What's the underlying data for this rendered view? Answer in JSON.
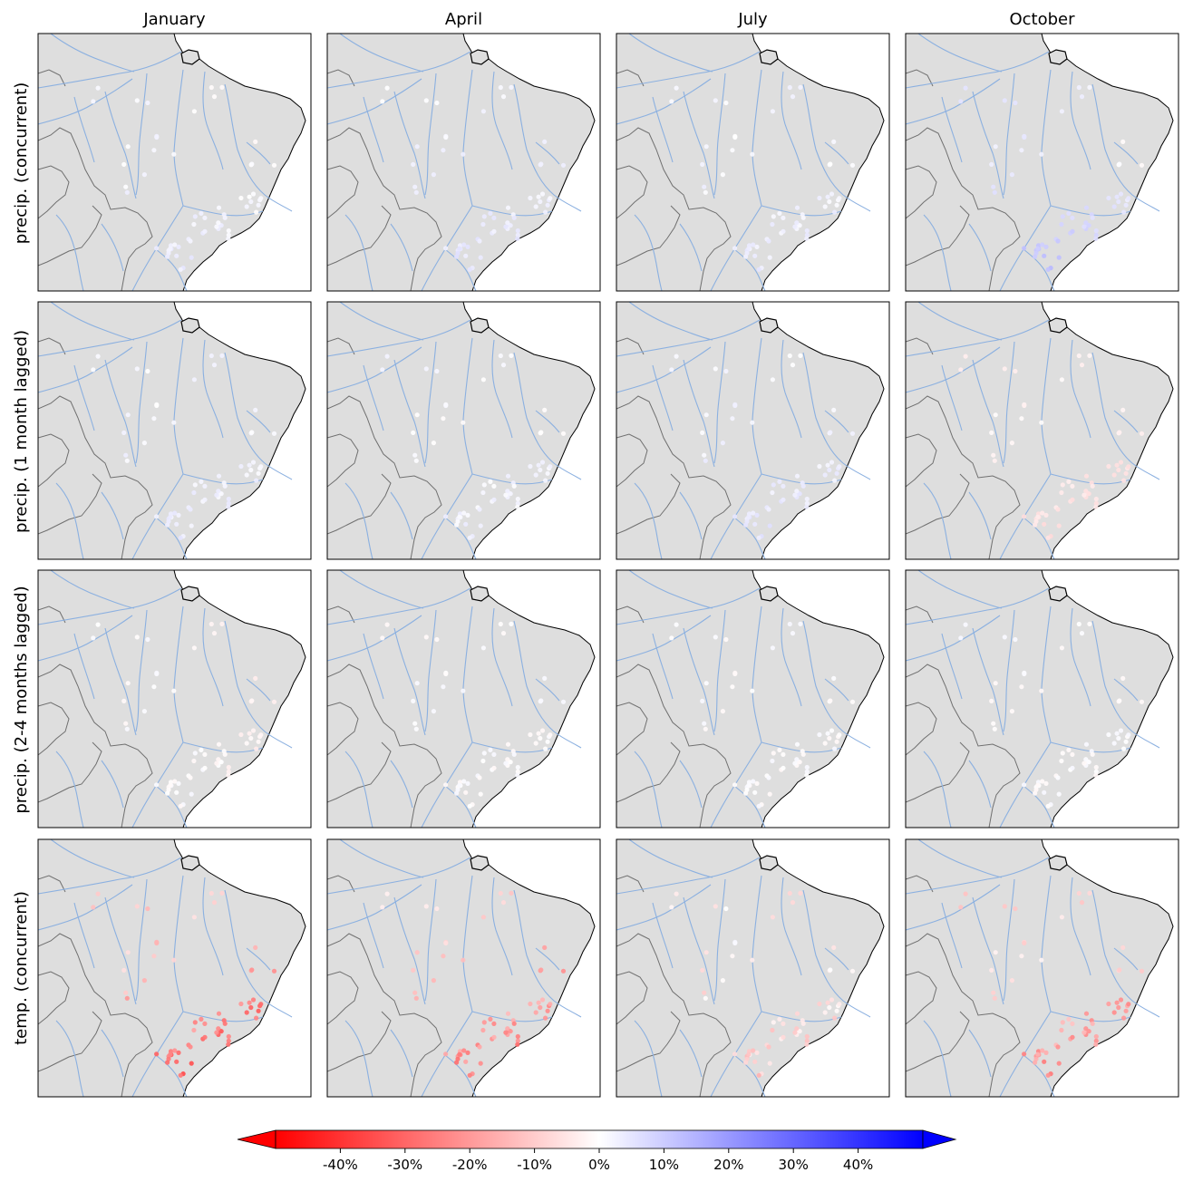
{
  "figure": {
    "columns": [
      "January",
      "April",
      "July",
      "October"
    ],
    "rows": [
      "precip. (concurrent)",
      "precip. (1 month lagged)",
      "precip. (2-4 months lagged)",
      "temp. (concurrent)"
    ]
  },
  "colorbar": {
    "ticks": [
      "-40%",
      "-30%",
      "-20%",
      "-10%",
      "0%",
      "10%",
      "20%",
      "30%",
      "40%"
    ],
    "tick_values": [
      -40,
      -30,
      -20,
      -10,
      0,
      10,
      20,
      30,
      40
    ],
    "min": -50,
    "max": 50,
    "extend": "both",
    "colormap": "bwr_r",
    "neg_color": "#ff0000",
    "mid_color": "#ffffff",
    "pos_color": "#0000ff"
  },
  "map_style": {
    "land_color": "#dedede",
    "river_color": "#8bb0e0",
    "border_color": "#6f6f6f",
    "coast_color": "#000000"
  },
  "chart_data": {
    "type": "map-scatter",
    "panels": [
      {
        "row": "precip. (concurrent)",
        "column": "January",
        "pattern": "near-zero, slight positive in east, slight negative in south"
      },
      {
        "row": "precip. (concurrent)",
        "column": "April",
        "pattern": "near-zero, slight positive in south"
      },
      {
        "row": "precip. (concurrent)",
        "column": "July",
        "pattern": "near-zero, slight positive in south"
      },
      {
        "row": "precip. (concurrent)",
        "column": "October",
        "pattern": "positive (~10-15%) in south, slight negative in east"
      },
      {
        "row": "precip. (1 month lagged)",
        "column": "January",
        "pattern": "near-zero, slight positive in south"
      },
      {
        "row": "precip. (1 month lagged)",
        "column": "April",
        "pattern": "near-zero, slight positive"
      },
      {
        "row": "precip. (1 month lagged)",
        "column": "July",
        "pattern": "near-zero, slight positive in south"
      },
      {
        "row": "precip. (1 month lagged)",
        "column": "October",
        "pattern": "slight negative across southeast"
      },
      {
        "row": "precip. (2-4 months lagged)",
        "column": "January",
        "pattern": "near-zero, slight negative in east"
      },
      {
        "row": "precip. (2-4 months lagged)",
        "column": "April",
        "pattern": "near-zero"
      },
      {
        "row": "precip. (2-4 months lagged)",
        "column": "July",
        "pattern": "near-zero"
      },
      {
        "row": "precip. (2-4 months lagged)",
        "column": "October",
        "pattern": "near-zero"
      },
      {
        "row": "temp. (concurrent)",
        "column": "January",
        "pattern": "negative (~-10 to -35%) widespread"
      },
      {
        "row": "temp. (concurrent)",
        "column": "April",
        "pattern": "negative (~-10 to -30%) widespread"
      },
      {
        "row": "temp. (concurrent)",
        "column": "July",
        "pattern": "slight negative, near-zero in south"
      },
      {
        "row": "temp. (concurrent)",
        "column": "October",
        "pattern": "negative (~-10 to -25%) in southeast"
      }
    ]
  }
}
